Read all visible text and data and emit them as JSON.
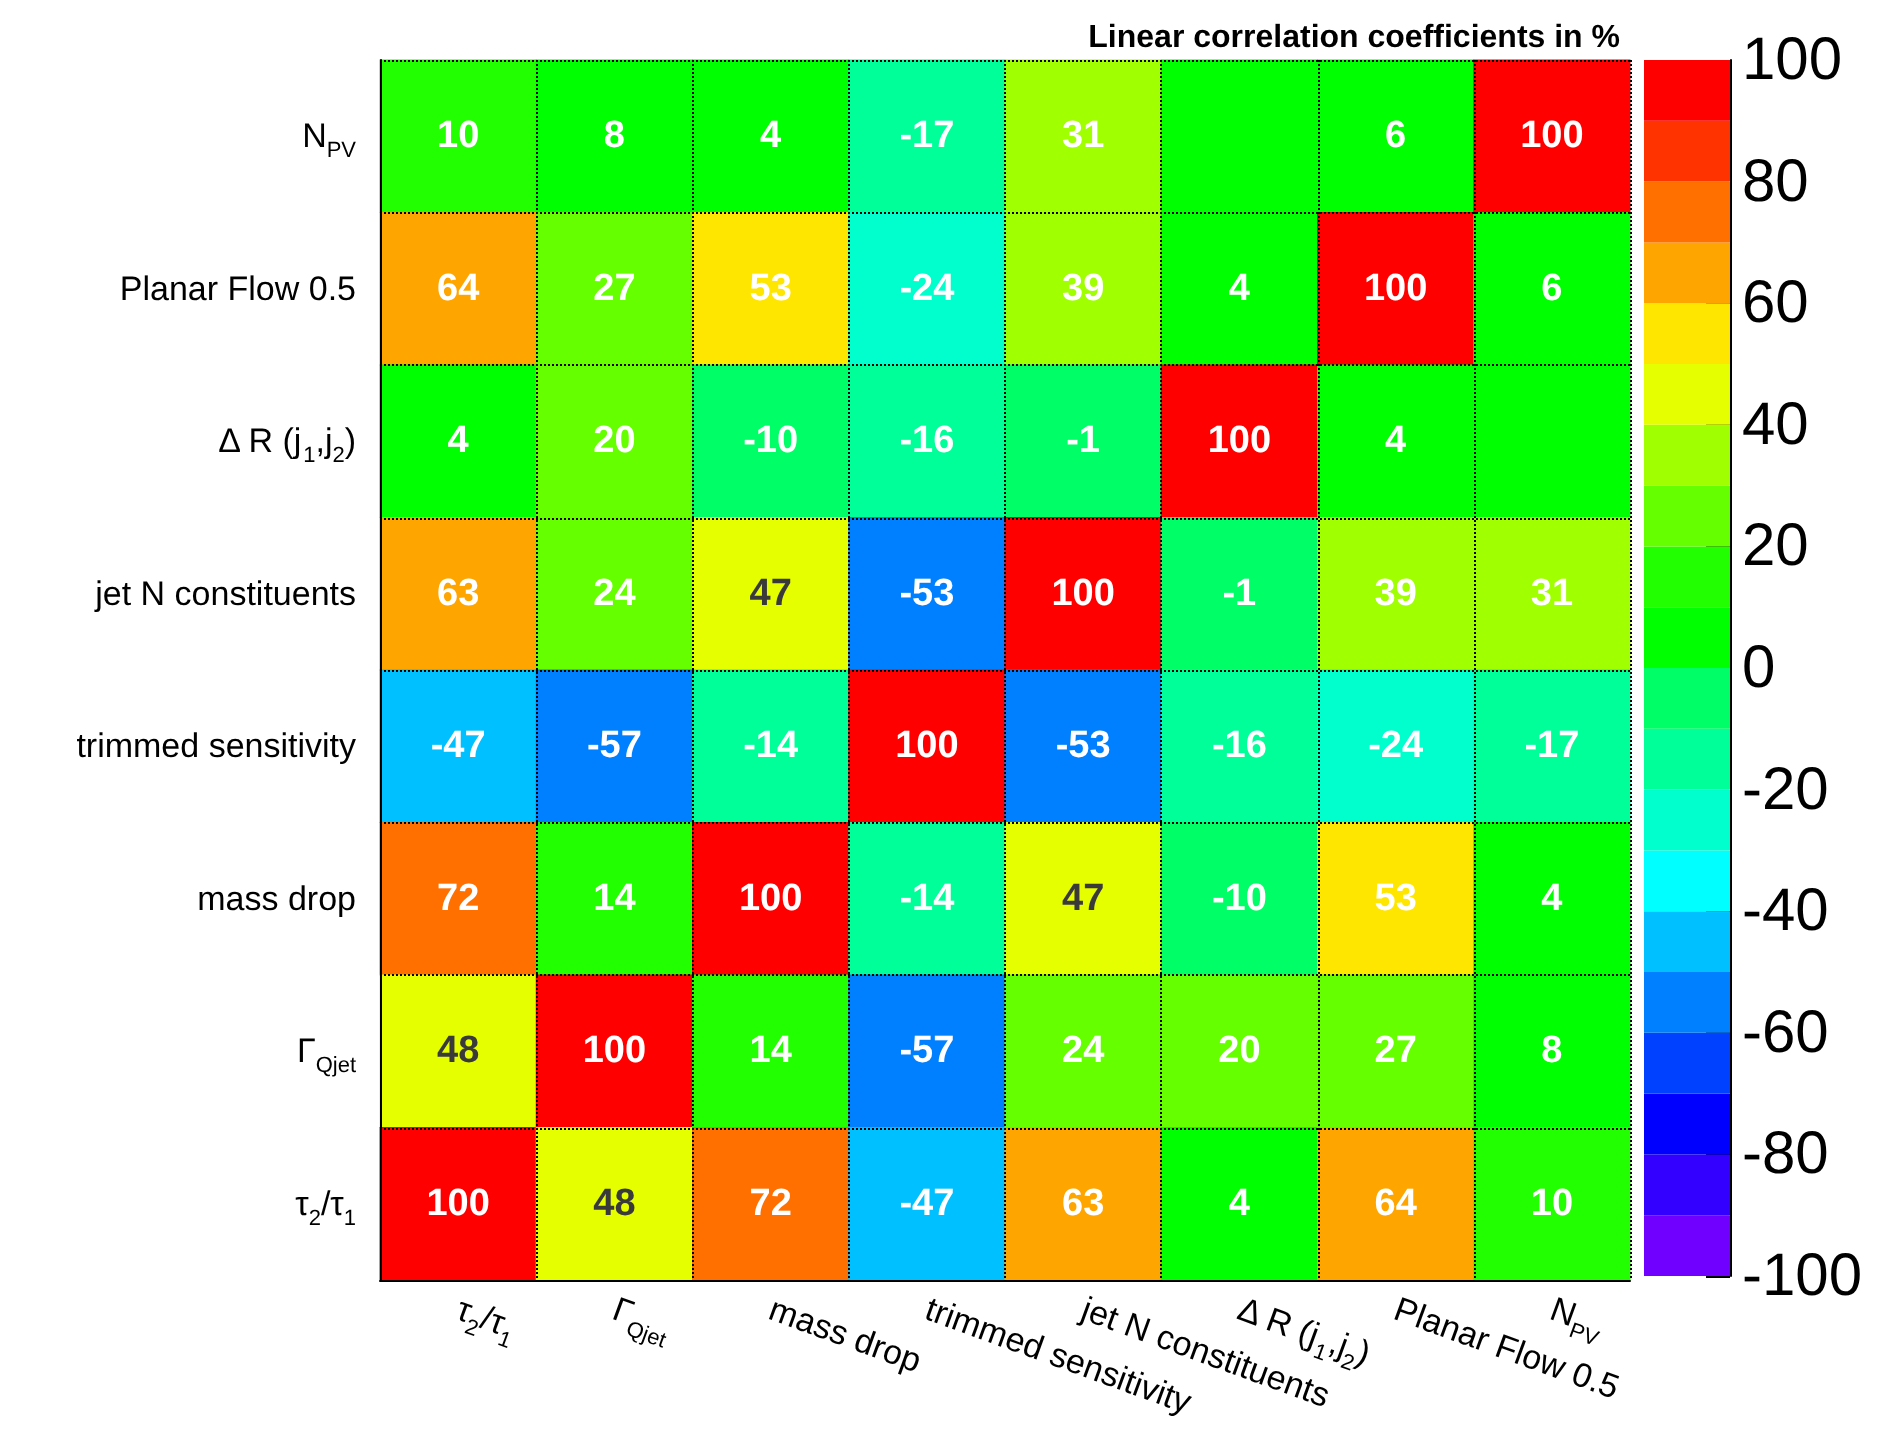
{
  "chart_data": {
    "type": "heatmap",
    "title": "Linear correlation coefficients in %",
    "categories": [
      "τ$_{2}$/τ$_{1}$",
      "Γ$_{Qjet}$",
      "mass drop",
      "trimmed sensitivity",
      "jet N constituents",
      "Δ R (j$_{1}$,j$_{2}$)",
      "Planar Flow 0.5",
      "N$_{PV}$"
    ],
    "y_categories": [
      "N$_{PV}$",
      "Planar Flow 0.5",
      "Δ R (j$_{1}$,j$_{2}$)",
      "jet N constituents",
      "trimmed sensitivity",
      "mass drop",
      "Γ$_{Qjet}$",
      "τ$_{2}$/τ$_{1}$"
    ],
    "cells": [
      [
        10,
        8,
        4,
        -17,
        31,
        0,
        6,
        100
      ],
      [
        64,
        27,
        53,
        -24,
        39,
        4,
        100,
        6
      ],
      [
        4,
        20,
        -10,
        -16,
        -1,
        100,
        4,
        0
      ],
      [
        63,
        24,
        47,
        -53,
        100,
        -1,
        39,
        31
      ],
      [
        -47,
        -57,
        -14,
        100,
        -53,
        -16,
        -24,
        -17
      ],
      [
        72,
        14,
        100,
        -14,
        47,
        -10,
        53,
        4
      ],
      [
        48,
        100,
        14,
        -57,
        24,
        20,
        27,
        8
      ],
      [
        100,
        48,
        72,
        -47,
        63,
        4,
        64,
        10
      ]
    ],
    "cell_labels": [
      [
        "10",
        "8",
        "4",
        "-17",
        "31",
        null,
        "6",
        "100"
      ],
      [
        "64",
        "27",
        "53",
        "-24",
        "39",
        "4",
        "100",
        "6"
      ],
      [
        "4",
        "20",
        "-10",
        "-16",
        "-1",
        "100",
        "4",
        null
      ],
      [
        "63",
        "24",
        "47",
        "-53",
        "100",
        "-1",
        "39",
        "31"
      ],
      [
        "-47",
        "-57",
        "-14",
        "100",
        "-53",
        "-16",
        "-24",
        "-17"
      ],
      [
        "72",
        "14",
        "100",
        "-14",
        "47",
        "-10",
        "53",
        "4"
      ],
      [
        "48",
        "100",
        "14",
        "-57",
        "24",
        "20",
        "27",
        "8"
      ],
      [
        "100",
        "48",
        "72",
        "-47",
        "63",
        "4",
        "64",
        "10"
      ]
    ],
    "clim": [
      -100,
      100
    ],
    "cticks": [
      -100,
      -80,
      -60,
      -40,
      -20,
      0,
      20,
      40,
      60,
      80,
      100
    ],
    "data_labels": true,
    "grid": true
  }
}
